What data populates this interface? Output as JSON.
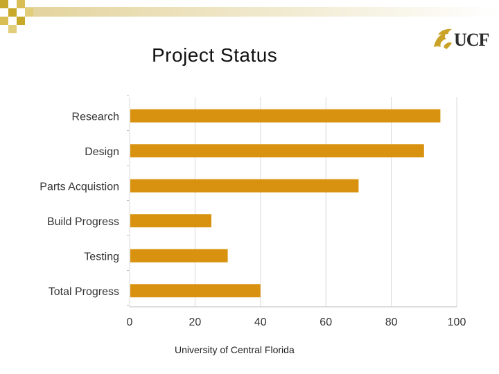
{
  "slide": {
    "title": "Project Status",
    "footer": "University of Central Florida",
    "logo_text": "UCF",
    "colors": {
      "bar": "#D9920F",
      "corner_squares": "#C8A82A",
      "grid": "#D9D9D9",
      "gradient_start": "#E6D9A8"
    }
  },
  "chart_data": {
    "type": "bar",
    "orientation": "horizontal",
    "categories": [
      "Research",
      "Design",
      "Parts Acquistion",
      "Build Progress",
      "Testing",
      "Total Progress"
    ],
    "values": [
      95,
      90,
      70,
      25,
      30,
      40
    ],
    "xlim": [
      0,
      100
    ],
    "xticks": [
      "0",
      "20",
      "40",
      "60",
      "80",
      "100"
    ],
    "grid": true,
    "legend": false
  }
}
